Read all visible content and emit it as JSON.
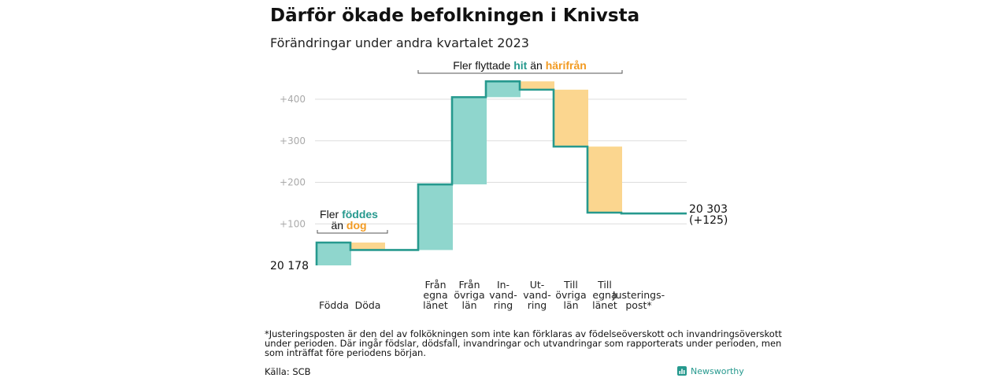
{
  "title": "Därför ökade befolkningen i Knivsta",
  "subtitle": "Förändringar under andra kvartalet 2023",
  "colors": {
    "teal": "#26998e",
    "teal_fill": "#8fd6cd",
    "orange": "#f29b23",
    "orange_fill": "#fbd68f",
    "grid": "#dddddd"
  },
  "annotations": {
    "births": {
      "line1": "Fler",
      "highlight1": "föddes",
      "line2": "än",
      "highlight2": "dog"
    },
    "migration": {
      "prefix": "Fler flyttade",
      "highlight1": "hit",
      "middle": "än",
      "highlight2": "härifrån"
    }
  },
  "start_label": "20  178",
  "end_label": "20 303",
  "end_change": "(+125)",
  "chart_data": {
    "type": "waterfall",
    "start": 0,
    "end": 125,
    "ylim": [
      0,
      400
    ],
    "yticks": [
      100,
      200,
      300,
      400
    ],
    "ytick_labels": [
      "+100",
      "+200",
      "+300",
      "+400"
    ],
    "grid": true,
    "categories": [
      {
        "label": [
          "Födda"
        ],
        "delta": 55
      },
      {
        "label": [
          "Döda"
        ],
        "delta": -18
      },
      {
        "label": [
          "Från",
          "egna",
          "länet"
        ],
        "delta": 158
      },
      {
        "label": [
          "Från",
          "övriga",
          "län"
        ],
        "delta": 210
      },
      {
        "label": [
          "In-",
          "vand-",
          "ring"
        ],
        "delta": 38
      },
      {
        "label": [
          "Ut-",
          "vand-",
          "ring"
        ],
        "delta": -20
      },
      {
        "label": [
          "Till",
          "övriga",
          "län"
        ],
        "delta": -137
      },
      {
        "label": [
          "Till",
          "egna",
          "länet"
        ],
        "delta": -159
      },
      {
        "label": [
          "Justerings-",
          "post*"
        ],
        "delta": -2
      }
    ]
  },
  "footnote": [
    "*Justeringsposten är den del av folkökningen som inte kan förklaras av födelseöverskott och invandringsöverskott",
    "under perioden. Där ingår födslar, dödsfall, invandringar och utvandringar som rapporterats under perioden, men",
    "som inträffat före periodens början."
  ],
  "source": "Källa: SCB",
  "brand": "Newsworthy"
}
